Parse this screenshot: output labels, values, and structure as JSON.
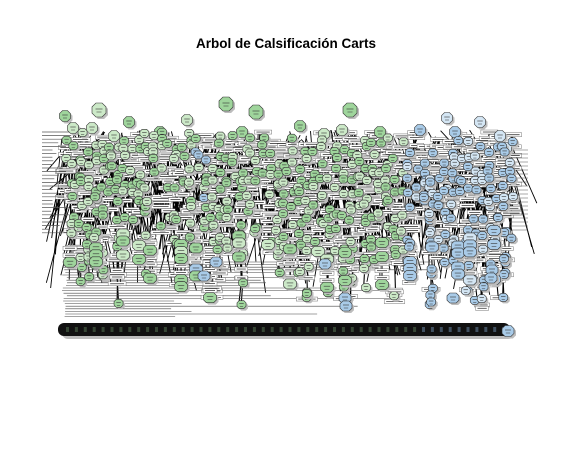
{
  "title": "Arbol de Calsificación Carts",
  "colors": {
    "background": "#ffffff",
    "class_green": "#9fd59c",
    "class_green_light": "#cce9c8",
    "class_blue": "#a9cbe8",
    "class_blue_light": "#d4e6f4",
    "edge": "#000000",
    "shadow": "#bdbdbd"
  },
  "tree": {
    "description": "Very dense rpart classification tree with overlapping unreadable node labels",
    "classes": [
      "green",
      "blue"
    ],
    "leaf_row_class_sequence": [
      "green",
      "green",
      "green",
      "green",
      "green",
      "green",
      "green",
      "green",
      "green",
      "green",
      "green",
      "green",
      "green",
      "green",
      "green",
      "green",
      "green",
      "green",
      "green",
      "green",
      "green",
      "green",
      "green",
      "green",
      "green",
      "green",
      "green",
      "green",
      "green",
      "green",
      "green",
      "green",
      "green",
      "green",
      "green",
      "green",
      "green",
      "green",
      "green",
      "green",
      "blue",
      "blue",
      "blue",
      "blue",
      "blue",
      "blue",
      "blue",
      "blue",
      "blue",
      "blue"
    ]
  }
}
